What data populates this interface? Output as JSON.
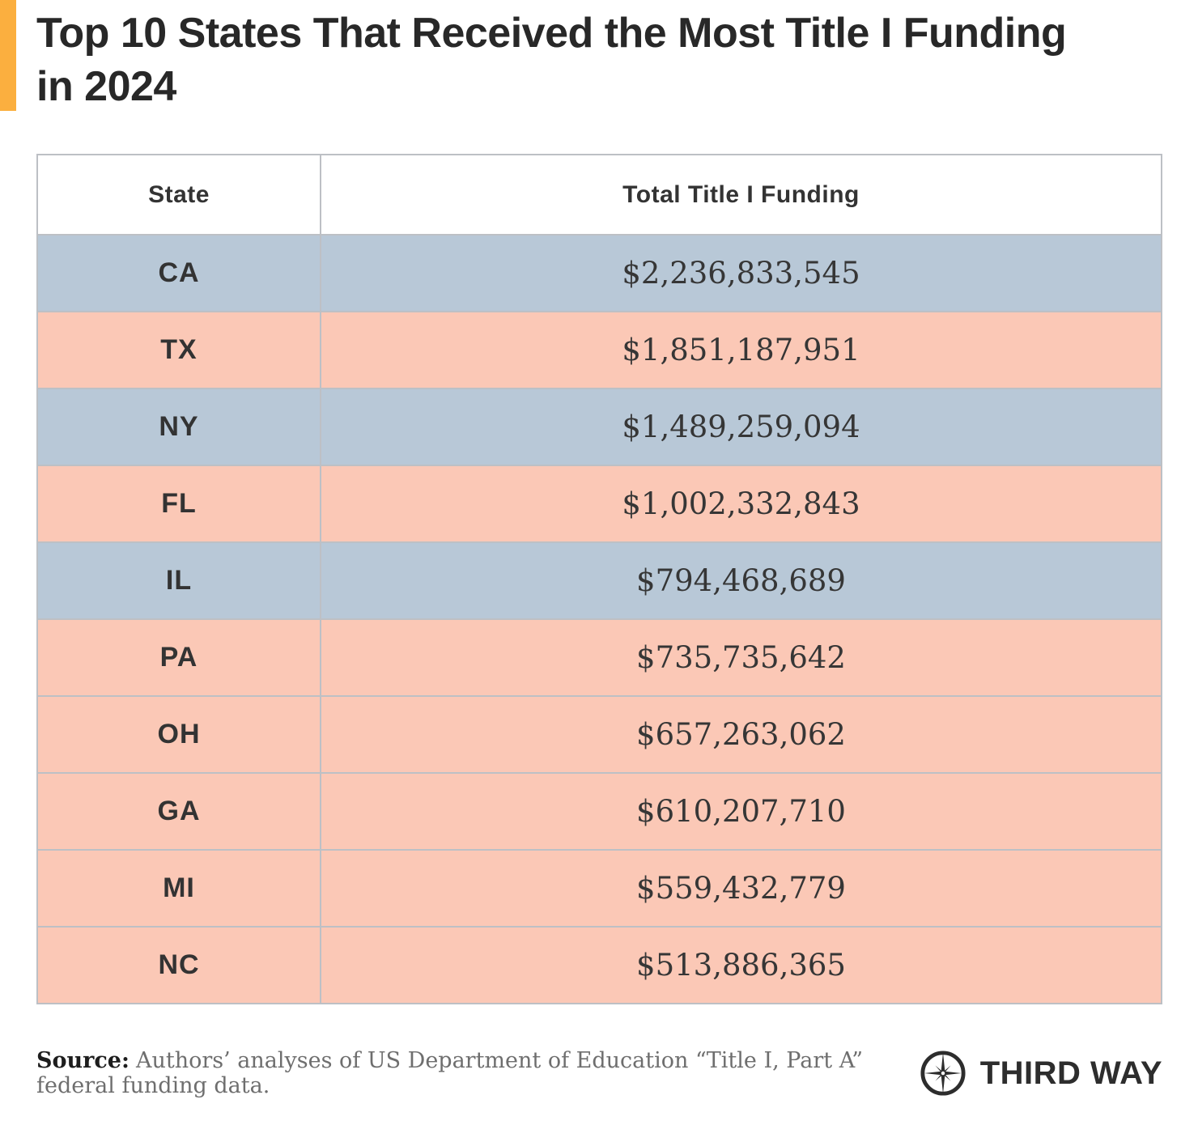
{
  "colors": {
    "accent_orange": "#fbaf3f",
    "row_blue": "#b8c8d7",
    "row_salmon": "#fbc8b6",
    "border_gray": "#bdc0c5",
    "text_dark": "#282828"
  },
  "title": {
    "line1": "Top 10 States That Received the Most Title I Funding",
    "line2": "in 2024"
  },
  "table": {
    "columns": [
      "State",
      "Total Title I Funding"
    ],
    "row_colors": {
      "blue": "#b8c8d7",
      "red": "#fbc8b6"
    },
    "rows": [
      {
        "state": "CA",
        "funding": "$2,236,833,545",
        "color": "blue"
      },
      {
        "state": "TX",
        "funding": "$1,851,187,951",
        "color": "red"
      },
      {
        "state": "NY",
        "funding": "$1,489,259,094",
        "color": "blue"
      },
      {
        "state": "FL",
        "funding": "$1,002,332,843",
        "color": "red"
      },
      {
        "state": "IL",
        "funding": "$794,468,689",
        "color": "blue"
      },
      {
        "state": "PA",
        "funding": "$735,735,642",
        "color": "red"
      },
      {
        "state": "OH",
        "funding": "$657,263,062",
        "color": "red"
      },
      {
        "state": "GA",
        "funding": "$610,207,710",
        "color": "red"
      },
      {
        "state": "MI",
        "funding": "$559,432,779",
        "color": "red"
      },
      {
        "state": "NC",
        "funding": "$513,886,365",
        "color": "red"
      }
    ]
  },
  "chart_data": {
    "type": "table",
    "title": "Top 10 States That Received the Most Title I Funding in 2024",
    "columns": [
      "State",
      "Total Title I Funding"
    ],
    "categories": [
      "CA",
      "TX",
      "NY",
      "FL",
      "IL",
      "PA",
      "OH",
      "GA",
      "MI",
      "NC"
    ],
    "values": [
      2236833545,
      1851187951,
      1489259094,
      1002332843,
      794468689,
      735735642,
      657263062,
      610207710,
      559432779,
      513886365
    ],
    "row_highlight_colors": [
      "blue",
      "red",
      "blue",
      "red",
      "blue",
      "red",
      "red",
      "red",
      "red",
      "red"
    ]
  },
  "source": {
    "label": "Source:",
    "text": "Authors’ analyses of US Department of Education “Title I, Part A” federal funding data."
  },
  "logo": {
    "name": "Third Way",
    "wordmark": "THIRD WAY"
  }
}
